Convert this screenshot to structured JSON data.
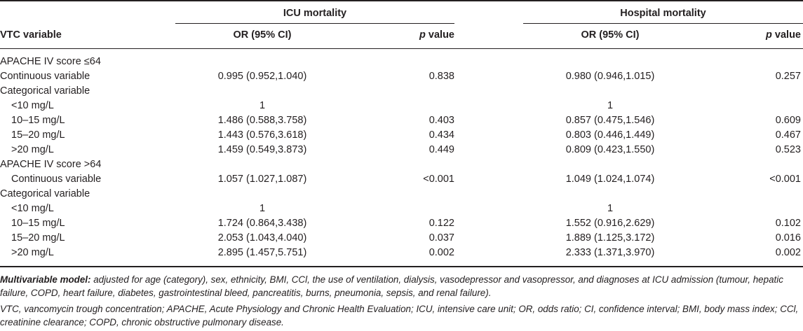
{
  "header": {
    "group_icu": "ICU mortality",
    "group_hospital": "Hospital mortality",
    "col_variable": "VTC variable",
    "col_or_icu": "OR (95% CI)",
    "col_p_icu_italic": "p",
    "col_p_icu_rest": " value",
    "col_or_hosp": "OR (95% CI)",
    "col_p_hosp_italic": "p",
    "col_p_hosp_rest": " value"
  },
  "rows": [
    {
      "label": "APACHE IV score ≤64",
      "indent": false,
      "or_icu": "",
      "p_icu": "",
      "or_hosp": "",
      "p_hosp": ""
    },
    {
      "label": "Continuous variable",
      "indent": false,
      "or_icu": "0.995 (0.952,1.040)",
      "p_icu": "0.838",
      "or_hosp": "0.980 (0.946,1.015)",
      "p_hosp": "0.257"
    },
    {
      "label": "Categorical variable",
      "indent": false,
      "or_icu": "",
      "p_icu": "",
      "or_hosp": "",
      "p_hosp": ""
    },
    {
      "label": "<10 mg/L",
      "indent": true,
      "or_icu": "1",
      "p_icu": "",
      "or_hosp": "1",
      "p_hosp": ""
    },
    {
      "label": "10–15 mg/L",
      "indent": true,
      "or_icu": "1.486 (0.588,3.758)",
      "p_icu": "0.403",
      "or_hosp": "0.857 (0.475,1.546)",
      "p_hosp": "0.609"
    },
    {
      "label": "15–20 mg/L",
      "indent": true,
      "or_icu": "1.443 (0.576,3.618)",
      "p_icu": "0.434",
      "or_hosp": "0.803 (0.446,1.449)",
      "p_hosp": "0.467"
    },
    {
      "label": ">20 mg/L",
      "indent": true,
      "or_icu": "1.459 (0.549,3.873)",
      "p_icu": "0.449",
      "or_hosp": "0.809 (0.423,1.550)",
      "p_hosp": "0.523"
    },
    {
      "label": "APACHE IV score >64",
      "indent": false,
      "or_icu": "",
      "p_icu": "",
      "or_hosp": "",
      "p_hosp": ""
    },
    {
      "label": "Continuous variable",
      "indent": true,
      "or_icu": "1.057 (1.027,1.087)",
      "p_icu": "<0.001",
      "or_hosp": "1.049 (1.024,1.074)",
      "p_hosp": "<0.001"
    },
    {
      "label": "Categorical variable",
      "indent": false,
      "or_icu": "",
      "p_icu": "",
      "or_hosp": "",
      "p_hosp": ""
    },
    {
      "label": "<10 mg/L",
      "indent": true,
      "or_icu": "1",
      "p_icu": "",
      "or_hosp": "1",
      "p_hosp": ""
    },
    {
      "label": "10–15 mg/L",
      "indent": true,
      "or_icu": "1.724 (0.864,3.438)",
      "p_icu": "0.122",
      "or_hosp": "1.552 (0.916,2.629)",
      "p_hosp": "0.102"
    },
    {
      "label": "15–20 mg/L",
      "indent": true,
      "or_icu": "2.053 (1.043,4.040)",
      "p_icu": "0.037",
      "or_hosp": "1.889 (1.125,3.172)",
      "p_hosp": "0.016"
    },
    {
      "label": ">20 mg/L",
      "indent": true,
      "or_icu": "2.895 (1.457,5.751)",
      "p_icu": "0.002",
      "or_hosp": "2.333 (1.371,3.970)",
      "p_hosp": "0.002"
    }
  ],
  "footnotes": {
    "model_label": "Multivariable model:",
    "model_text": " adjusted for age (category), sex, ethnicity, BMI, CCl, the use of ventilation, dialysis, vasodepressor and vasopressor, and diagnoses at ICU admission (tumour, hepatic failure, COPD, heart failure, diabetes, gastrointestinal bleed, pancreatitis, burns, pneumonia, sepsis, and renal failure).",
    "abbreviations": "VTC, vancomycin trough concentration; APACHE, Acute Physiology and Chronic Health Evaluation; ICU, intensive care unit; OR, odds ratio; CI, confidence interval; BMI, body mass index; CCl, creatinine clearance; COPD, chronic obstructive pulmonary disease."
  }
}
